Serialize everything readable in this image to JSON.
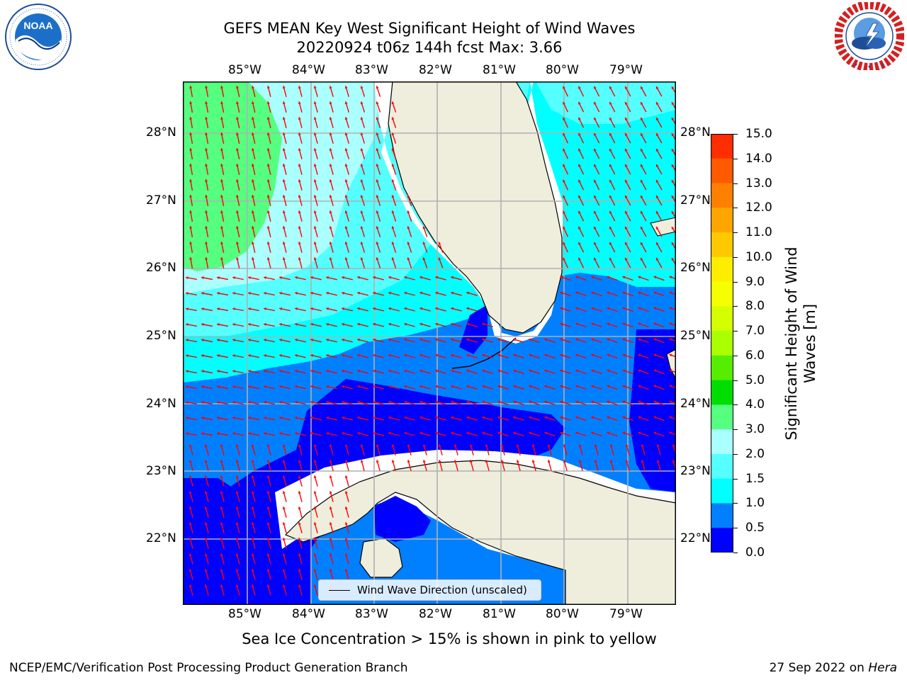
{
  "title_line1": "GEFS MEAN Key West Significant Height of Wind Waves",
  "title_line2": "20220924 t06z 144h fcst   Max: 3.66",
  "lon_labels": [
    "85°W",
    "84°W",
    "83°W",
    "82°W",
    "81°W",
    "80°W",
    "79°W"
  ],
  "lat_labels": [
    "28°N",
    "27°N",
    "26°N",
    "25°N",
    "24°N",
    "23°N",
    "22°N"
  ],
  "legend_label": "Wind Wave Direction (unscaled)",
  "colorbar": {
    "title_line1": "Significant Height of Wind",
    "title_line2": "Waves [m]",
    "ticks": [
      "15.0",
      "14.0",
      "13.0",
      "12.0",
      "11.0",
      "10.0",
      "9.0",
      "8.0",
      "7.0",
      "6.0",
      "5.0",
      "4.0",
      "3.0",
      "2.0",
      "1.5",
      "1.0",
      "0.5",
      "0.0"
    ],
    "colors": [
      "#ff0000",
      "#ff2e00",
      "#ff5a00",
      "#ff8000",
      "#ffa500",
      "#ffc800",
      "#ffed00",
      "#f5ff00",
      "#d4ff00",
      "#aaff00",
      "#55ee00",
      "#00dd00",
      "#55ff7f",
      "#aaffff",
      "#55ffff",
      "#00ffff",
      "#0080ff",
      "#0000ff"
    ]
  },
  "sea_ice_note": "Sea Ice Concentration > 15% is shown in pink to yellow",
  "footer_left": "NCEP/EMC/Verification Post Processing Product Generation Branch",
  "footer_date": "27 Sep 2022 on ",
  "footer_host": "Hera",
  "colors": {
    "land": "#efeddc",
    "grid": "#b0b0b0",
    "arrow": "#ff0000"
  },
  "logos": {
    "left": "NOAA",
    "right_icon": "national-weather-service-logo"
  }
}
